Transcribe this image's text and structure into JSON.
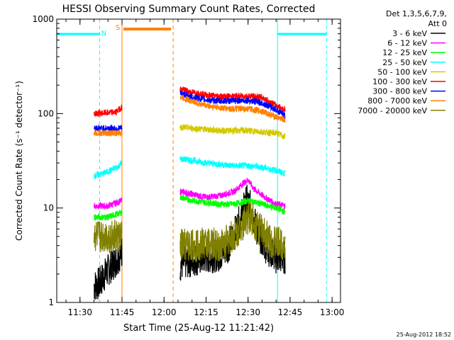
{
  "chart_data": {
    "type": "line",
    "title": "HESSI Observing Summary Count Rates, Corrected",
    "xlabel": "Start Time (25-Aug-12 11:21:42)",
    "ylabel": "Corrected Count Rate (s⁻¹ detector⁻¹)",
    "y_scale": "log",
    "ylim": [
      1,
      1000
    ],
    "xlim": [
      "11:21:42",
      "13:03:00"
    ],
    "x_ticks": [
      "11:30",
      "11:45",
      "12:00",
      "12:15",
      "12:30",
      "12:45",
      "13:00"
    ],
    "y_ticks": [
      "1",
      "10",
      "100",
      "1000"
    ],
    "legend": {
      "position": "top-right",
      "header": [
        "Det 1,3,5,6,7,9,",
        "Att 0"
      ],
      "entries": [
        {
          "name": "3 - 6 keV",
          "color": "#000000"
        },
        {
          "name": "6 - 12 keV",
          "color": "#ff00ff"
        },
        {
          "name": "12 - 25 keV",
          "color": "#00ff00"
        },
        {
          "name": "25 - 50 keV",
          "color": "#00ffff"
        },
        {
          "name": "50 - 100 keV",
          "color": "#d4c800"
        },
        {
          "name": "100 - 300 keV",
          "color": "#ff0000"
        },
        {
          "name": "300 - 800 keV",
          "color": "#0000ff"
        },
        {
          "name": "800 - 7000 keV",
          "color": "#ff8000"
        },
        {
          "name": "7000 - 20000 keV",
          "color": "#808000"
        }
      ]
    },
    "segments": [
      [
        "11:35:00",
        "11:45:00"
      ],
      [
        "12:05:45",
        "12:43:15"
      ]
    ],
    "series": [
      {
        "name": "3 - 6 keV",
        "color": "#000000",
        "x": [
          "11:35:00",
          "11:37:00",
          "11:39:00",
          "11:41:00",
          "11:43:00",
          "11:45:00",
          "12:05:45",
          "12:10:00",
          "12:15:00",
          "12:20:00",
          "12:23:00",
          "12:26:00",
          "12:28:00",
          "12:29:30",
          "12:31:00",
          "12:33:00",
          "12:36:00",
          "12:40:00",
          "12:43:15"
        ],
        "values": [
          1.5,
          1.6,
          2.0,
          2.4,
          2.8,
          3.5,
          2.5,
          2.8,
          3.0,
          3.2,
          4.0,
          6.0,
          9.0,
          12.0,
          10.0,
          6.0,
          4.0,
          3.0,
          3.0
        ]
      },
      {
        "name": "6 - 12 keV",
        "color": "#ff00ff",
        "x": [
          "11:35:00",
          "11:40:00",
          "11:45:00",
          "12:05:45",
          "12:10:00",
          "12:15:00",
          "12:20:00",
          "12:25:00",
          "12:28:00",
          "12:30:00",
          "12:32:00",
          "12:36:00",
          "12:40:00",
          "12:43:15"
        ],
        "values": [
          10.5,
          10.5,
          12.0,
          15.0,
          14.0,
          13.0,
          13.5,
          15.0,
          18.0,
          20.0,
          16.0,
          13.0,
          11.0,
          10.5
        ]
      },
      {
        "name": "12 - 25 keV",
        "color": "#00ff00",
        "x": [
          "11:35:00",
          "11:40:00",
          "11:45:00",
          "12:05:45",
          "12:10:00",
          "12:15:00",
          "12:20:00",
          "12:25:00",
          "12:30:00",
          "12:35:00",
          "12:40:00",
          "12:43:15"
        ],
        "values": [
          8.0,
          8.0,
          9.0,
          13.0,
          12.0,
          11.5,
          11.0,
          11.0,
          12.0,
          11.0,
          10.0,
          9.0
        ]
      },
      {
        "name": "25 - 50 keV",
        "color": "#00ffff",
        "x": [
          "11:35:00",
          "11:38:00",
          "11:41:00",
          "11:44:00",
          "11:45:00",
          "12:05:45",
          "12:10:00",
          "12:15:00",
          "12:20:00",
          "12:25:00",
          "12:30:00",
          "12:35:00",
          "12:40:00",
          "12:43:15"
        ],
        "values": [
          22.0,
          23.0,
          25.0,
          28.0,
          31.0,
          33.0,
          32.0,
          30.0,
          29.0,
          28.0,
          28.0,
          27.0,
          25.0,
          23.0
        ]
      },
      {
        "name": "50 - 100 keV",
        "color": "#d4c800",
        "x": [
          "12:05:45",
          "12:10:00",
          "12:15:00",
          "12:20:00",
          "12:25:00",
          "12:30:00",
          "12:35:00",
          "12:40:00",
          "12:43:15"
        ],
        "values": [
          72.0,
          70.0,
          68.0,
          66.0,
          66.0,
          66.0,
          64.0,
          62.0,
          57.0
        ]
      },
      {
        "name": "100 - 300 keV",
        "color": "#ff0000",
        "x": [
          "11:35:00",
          "11:40:00",
          "11:43:00",
          "11:45:00",
          "12:05:45",
          "12:10:00",
          "12:15:00",
          "12:20:00",
          "12:25:00",
          "12:30:00",
          "12:35:00",
          "12:40:00",
          "12:43:15"
        ],
        "values": [
          100.0,
          102.0,
          104.0,
          118.0,
          182.0,
          168.0,
          158.0,
          152.0,
          152.0,
          154.0,
          148.0,
          122.0,
          110.0
        ]
      },
      {
        "name": "300 - 800 keV",
        "color": "#0000ff",
        "x": [
          "11:35:00",
          "11:40:00",
          "11:45:00",
          "12:05:45",
          "12:10:00",
          "12:15:00",
          "12:20:00",
          "12:25:00",
          "12:30:00",
          "12:35:00",
          "12:40:00",
          "12:43:15"
        ],
        "values": [
          70.0,
          70.0,
          70.0,
          165.0,
          150.0,
          140.0,
          136.0,
          136.0,
          138.0,
          130.0,
          110.0,
          95.0
        ]
      },
      {
        "name": "800 - 7000 keV",
        "color": "#ff8000",
        "x": [
          "11:35:00",
          "11:40:00",
          "11:45:00",
          "12:05:45",
          "12:10:00",
          "12:15:00",
          "12:20:00",
          "12:25:00",
          "12:30:00",
          "12:35:00",
          "12:40:00",
          "12:43:15"
        ],
        "values": [
          62.0,
          62.0,
          62.0,
          150.0,
          135.0,
          122.0,
          115.0,
          112.0,
          112.0,
          106.0,
          92.0,
          85.0
        ]
      },
      {
        "name": "7000 - 20000 keV",
        "color": "#808000",
        "x": [
          "11:35:00",
          "11:40:00",
          "11:45:00",
          "12:05:45",
          "12:10:00",
          "12:15:00",
          "12:20:00",
          "12:23:00",
          "12:26:00",
          "12:29:00",
          "12:31:00",
          "12:34:00",
          "12:38:00",
          "12:43:15"
        ],
        "values": [
          5.0,
          5.0,
          5.0,
          4.0,
          4.0,
          4.2,
          4.0,
          4.6,
          5.5,
          7.5,
          8.0,
          6.0,
          4.5,
          4.0
        ]
      }
    ],
    "annotations": {
      "eclipse_night_bars": [
        [
          "11:21:42",
          "11:37:00"
        ],
        [
          "12:40:30",
          "12:58:00"
        ]
      ],
      "saa_bar": [
        "11:45:30",
        "12:02:30"
      ],
      "attenuator_lines": [
        "11:45:00",
        "12:03:15"
      ],
      "eclipse_lines_solid": [
        "11:21:42",
        "12:40:30"
      ],
      "eclipse_lines_dashed": [
        "11:37:00",
        "12:58:00"
      ],
      "labels": [
        {
          "text": "S",
          "color": "#ff8000",
          "time": "11:43:30"
        },
        {
          "text": "N",
          "color": "#00ffff",
          "time": "11:38:30"
        }
      ]
    },
    "grid": false
  },
  "footer": {
    "timestamp": "25-Aug-2012 18:52"
  }
}
